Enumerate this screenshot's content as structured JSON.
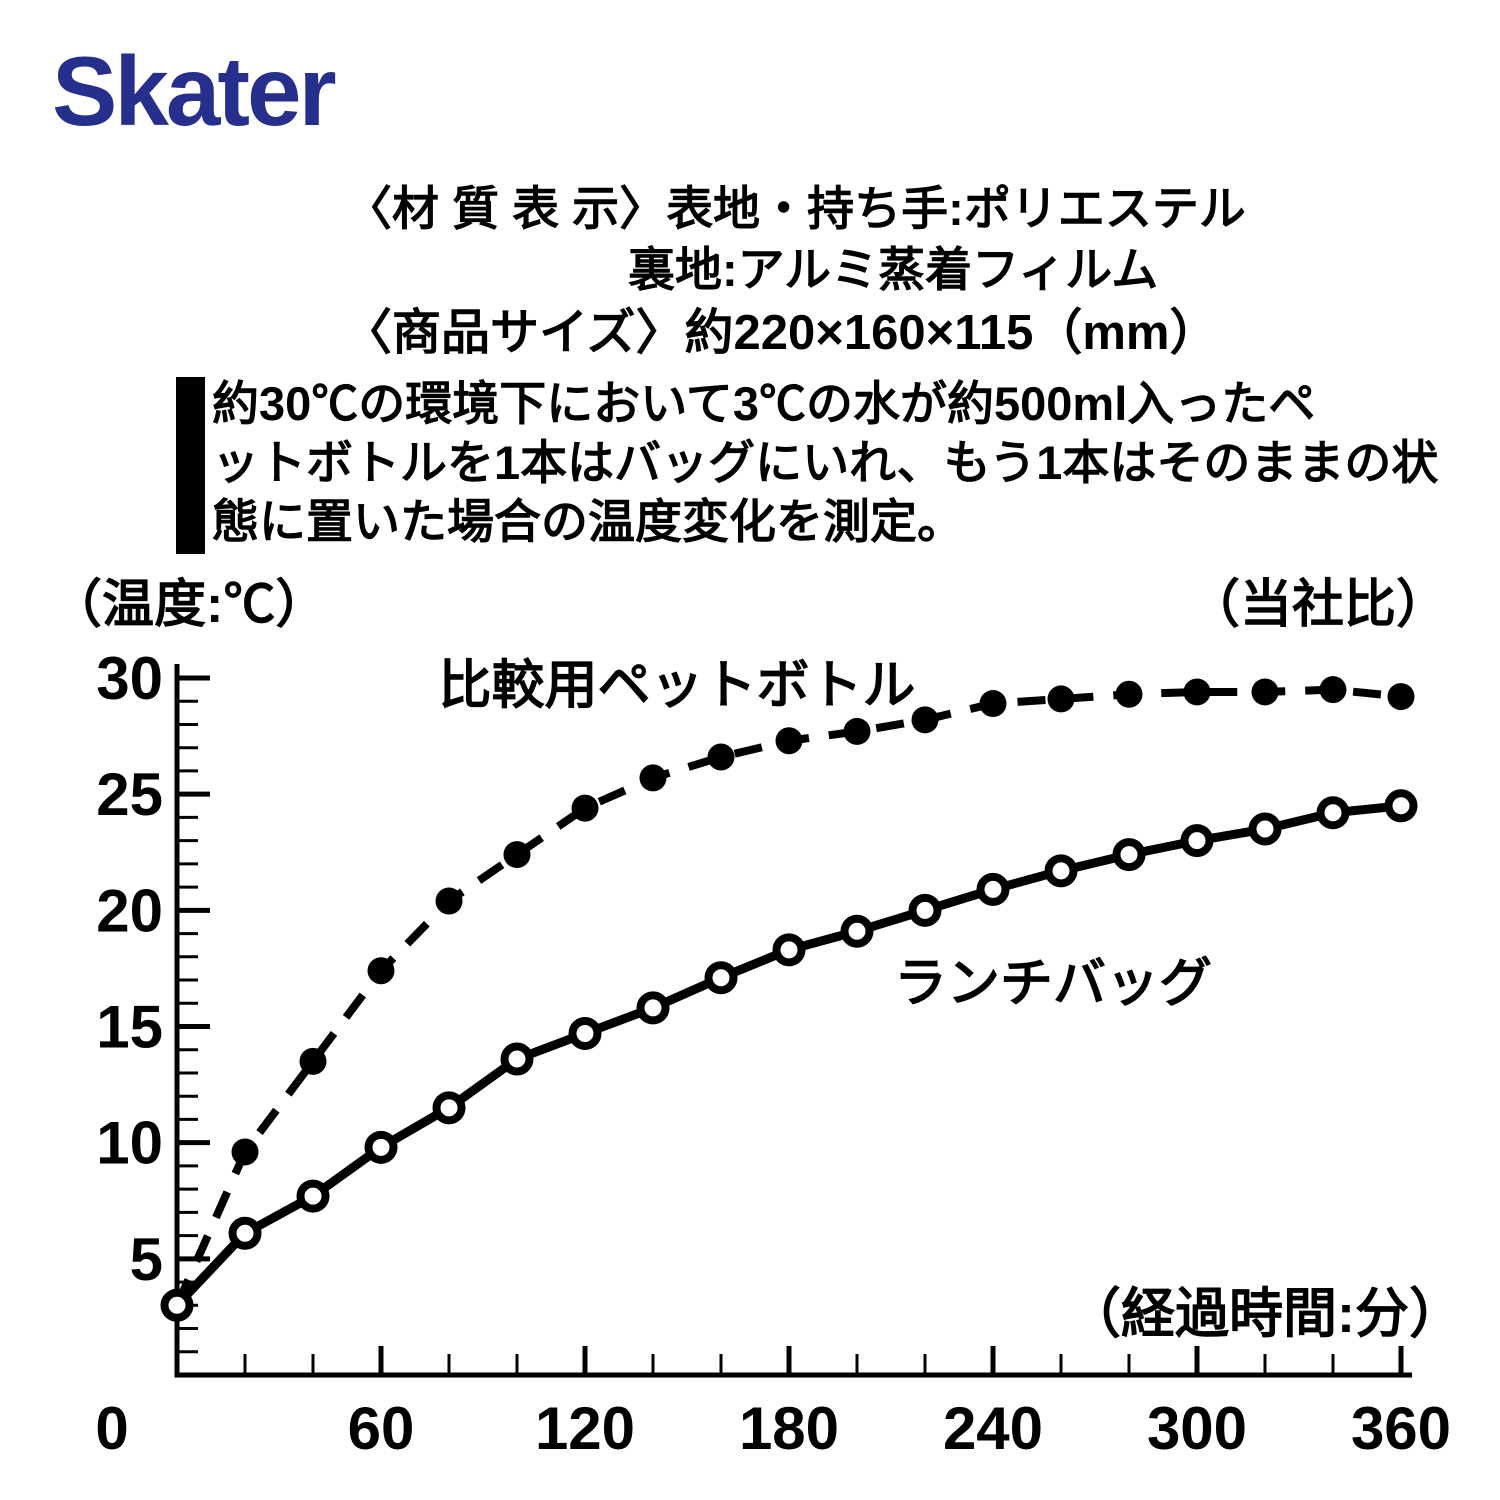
{
  "logo": {
    "text": "Skater",
    "color": "#262f8c"
  },
  "header": {
    "material_label": "〈材 質 表 示〉",
    "material_line1": "表地・持ち手:ポリエステル",
    "material_line2": "裏地:アルミ蒸着フィルム",
    "size_line": "〈商品サイズ〉約220×160×115（mm）",
    "note_lines": [
      "約30℃の環境下において3℃の水が約500ml入ったペ",
      "ットボトルを1本はバッグにいれ、もう1本はそのままの状",
      "態に置いた場合の温度変化を測定。"
    ]
  },
  "chart_data": {
    "type": "line",
    "title": "",
    "y_unit_note": "（温度:℃）",
    "right_note": "（当社比）",
    "x_unit_note": "（経過時間:分）",
    "xlim": [
      0,
      360
    ],
    "ylim": [
      0,
      30
    ],
    "xticks": [
      0,
      60,
      120,
      180,
      240,
      300,
      360
    ],
    "xminor_step": 20,
    "yticks": [
      5,
      10,
      15,
      20,
      25,
      30
    ],
    "yminor_step": 1,
    "x": [
      0,
      20,
      40,
      60,
      80,
      100,
      120,
      140,
      160,
      180,
      200,
      220,
      240,
      260,
      280,
      300,
      320,
      340,
      360
    ],
    "series": [
      {
        "name": "比較用ペットボトル",
        "slug": "pet-bottle",
        "line": "dashed",
        "marker": "filled-circle",
        "skip_first_marker": true,
        "values": [
          3.0,
          9.6,
          13.5,
          17.4,
          20.4,
          22.4,
          24.4,
          25.7,
          26.6,
          27.3,
          27.7,
          28.2,
          28.9,
          29.1,
          29.3,
          29.4,
          29.4,
          29.5,
          29.2
        ]
      },
      {
        "name": "ランチバッグ",
        "slug": "lunch-bag",
        "line": "solid",
        "marker": "open-circle",
        "skip_first_marker": false,
        "values": [
          3.0,
          6.1,
          7.7,
          9.8,
          11.5,
          13.6,
          14.7,
          15.8,
          17.1,
          18.3,
          19.1,
          20.0,
          20.9,
          21.7,
          22.4,
          23.0,
          23.5,
          24.2,
          24.5
        ]
      }
    ],
    "legend_position": "inline-labels",
    "grid": "off"
  }
}
